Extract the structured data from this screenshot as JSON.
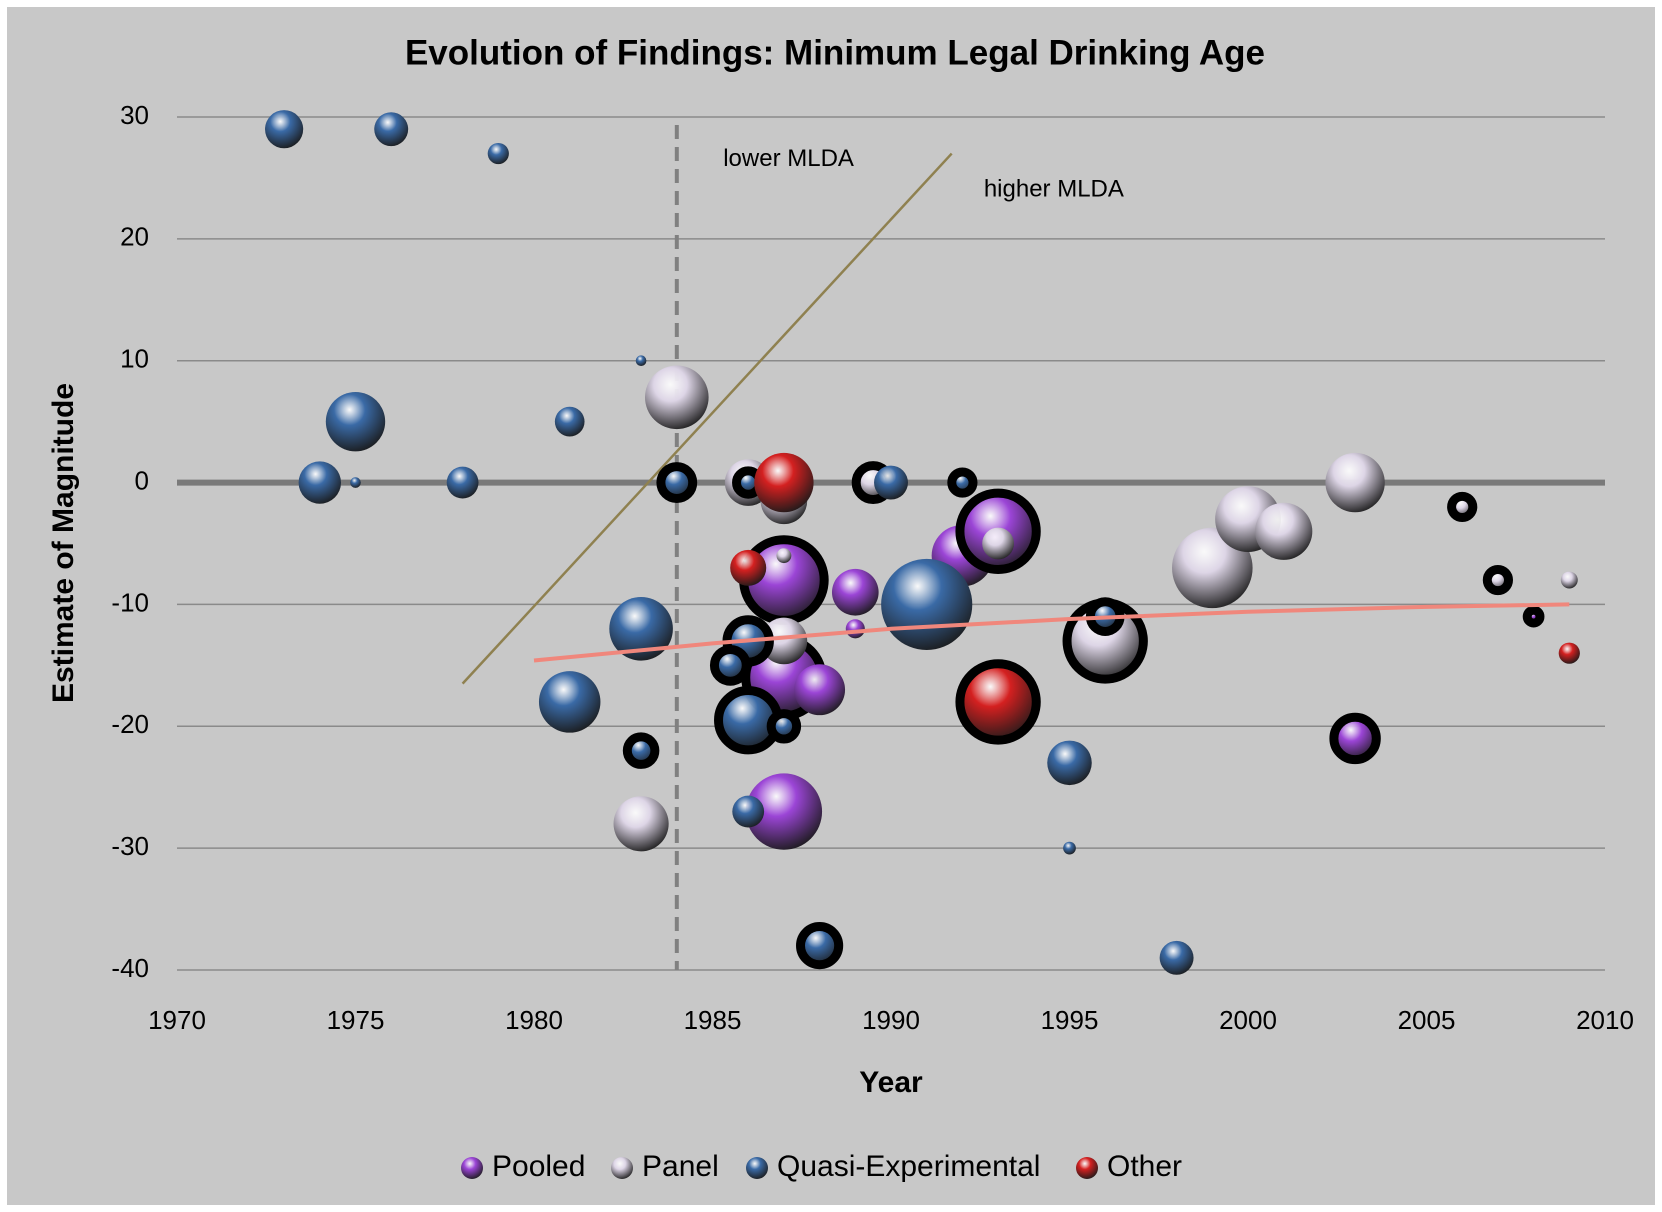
{
  "chart_data": {
    "type": "bubble",
    "title": "Evolution of Findings: Minimum Legal Drinking Age",
    "x_label": "Year",
    "y_label": "Estimate of Magnitude",
    "xlim": [
      1970,
      2010
    ],
    "xticks": [
      1970,
      1975,
      1980,
      1985,
      1990,
      1995,
      2000,
      2005,
      2010
    ],
    "ylim": [
      -40,
      30
    ],
    "yticks": [
      -40,
      -30,
      -20,
      -10,
      0,
      10,
      20,
      30
    ],
    "grid": true,
    "legend_position": "bottom",
    "series": [
      {
        "name": "Pooled",
        "color": "#9b45d6",
        "x": [
          1987,
          1992,
          1993,
          1989,
          1989,
          1987,
          1988,
          1987,
          2003,
          2008
        ],
        "values": [
          -8,
          -6,
          -4,
          -9,
          -12,
          -16,
          -17,
          -27,
          -21,
          -11
        ],
        "sizes": [
          38,
          29,
          36,
          22,
          9,
          36,
          24,
          36,
          20,
          6
        ],
        "outlined": [
          true,
          false,
          true,
          false,
          false,
          true,
          false,
          false,
          true,
          true
        ]
      },
      {
        "name": "Panel",
        "color": "#ddd5e6",
        "x": [
          1984,
          1986,
          1989.5,
          1987,
          1987,
          1987,
          1983,
          1993,
          1996,
          1999,
          2000,
          2001,
          2003,
          2006,
          2007,
          2009
        ],
        "values": [
          7,
          0,
          0,
          -1.5,
          -6,
          -13,
          -28,
          -5,
          -13,
          -7,
          -3,
          -4,
          0,
          -2,
          -8,
          -8
        ],
        "sizes": [
          30,
          22,
          16,
          22,
          7,
          22,
          26,
          15,
          36,
          38,
          31,
          27,
          28,
          10,
          10,
          8
        ],
        "outlined": [
          false,
          false,
          true,
          false,
          false,
          false,
          false,
          false,
          true,
          false,
          false,
          false,
          false,
          true,
          true,
          false
        ]
      },
      {
        "name": "Quasi-Experimental",
        "color": "#3a6aa6",
        "x": [
          1973,
          1976,
          1979,
          1983,
          1975,
          1981,
          1974,
          1975,
          1978,
          1984,
          1986,
          1990,
          1992,
          1983,
          1981,
          1983,
          1986,
          1985.5,
          1986,
          1987,
          1986,
          1991,
          1996,
          1995,
          1995,
          1988,
          1998
        ],
        "values": [
          29,
          29,
          27,
          10,
          5,
          5,
          0,
          0,
          0,
          0,
          0,
          0,
          0,
          -12,
          -18,
          -22,
          -13,
          -15,
          -19.5,
          -20,
          -27,
          -10,
          -11,
          -23,
          -30,
          -38,
          -39
        ],
        "sizes": [
          18,
          16,
          10,
          5,
          28,
          14,
          20,
          5,
          15,
          15,
          11,
          16,
          10,
          30,
          29,
          13,
          20,
          15,
          28,
          12,
          15,
          43,
          14,
          21,
          6,
          18,
          16
        ],
        "outlined": [
          false,
          false,
          false,
          false,
          false,
          false,
          false,
          false,
          false,
          true,
          true,
          false,
          true,
          false,
          false,
          true,
          true,
          true,
          true,
          true,
          false,
          false,
          true,
          false,
          false,
          true,
          false
        ]
      },
      {
        "name": "Other",
        "color": "#d42020",
        "x": [
          1987,
          1986,
          1993,
          2009
        ],
        "values": [
          0,
          -7,
          -18,
          -14
        ],
        "sizes": [
          28,
          17,
          36,
          10
        ],
        "outlined": [
          false,
          false,
          true,
          false
        ]
      }
    ],
    "trendline": {
      "color": "#f0877c",
      "x": [
        1980,
        1985,
        1990,
        1995,
        2000,
        2005,
        2009
      ],
      "y": [
        -14.6,
        -13.2,
        -12,
        -11.2,
        -10.6,
        -10.2,
        -10
      ]
    },
    "divider_line": {
      "color": "#8f8150",
      "x": [
        1978,
        1991.7
      ],
      "y": [
        -16.5,
        27
      ]
    },
    "reference_x": 1984,
    "annotations": [
      {
        "text": "lower MLDA",
        "x": 1985.3,
        "y": 26.5
      },
      {
        "text": "higher MLDA",
        "x": 1992.6,
        "y": 24
      }
    ]
  }
}
